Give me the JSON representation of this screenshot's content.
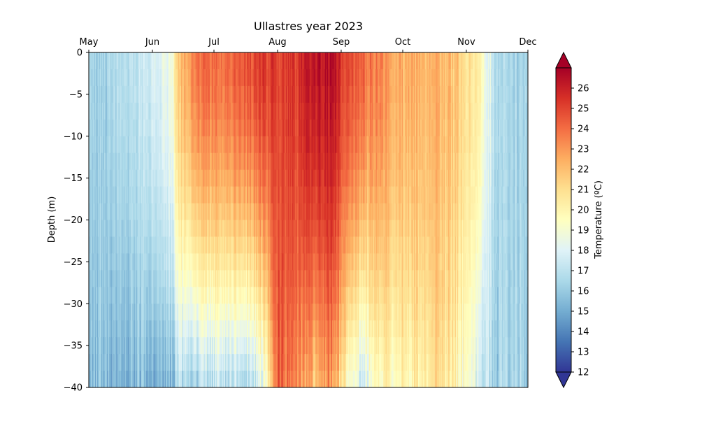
{
  "chart_data": {
    "type": "heatmap",
    "title": "Ullastres year 2023",
    "xlabel": "",
    "ylabel": "Depth (m)",
    "x_axis_position": "top",
    "x_ticks": [
      "May",
      "Jun",
      "Jul",
      "Aug",
      "Sep",
      "Oct",
      "Nov",
      "Dec"
    ],
    "x_range": [
      "2023-05-01",
      "2023-12-01"
    ],
    "y_ticks": [
      0,
      -5,
      -10,
      -15,
      -20,
      -25,
      -30,
      -35,
      -40
    ],
    "ylim": [
      -40,
      0
    ],
    "colorbar": {
      "label": "Temperature (ºC)",
      "ticks": [
        12,
        13,
        14,
        15,
        16,
        17,
        18,
        19,
        20,
        21,
        22,
        23,
        24,
        25,
        26
      ],
      "range": [
        12,
        27
      ],
      "colormap": "RdYlBu_r",
      "extend": "both"
    },
    "grid": false,
    "temperature_profile": {
      "dates": [
        "2023-05-01",
        "2023-05-15",
        "2023-06-01",
        "2023-06-10",
        "2023-06-14",
        "2023-06-20",
        "2023-07-01",
        "2023-07-15",
        "2023-07-25",
        "2023-08-01",
        "2023-08-10",
        "2023-08-20",
        "2023-08-27",
        "2023-09-01",
        "2023-09-10",
        "2023-09-20",
        "2023-10-01",
        "2023-10-15",
        "2023-10-25",
        "2023-11-01",
        "2023-11-08",
        "2023-11-15",
        "2023-12-01"
      ],
      "surface": [
        16.3,
        16.5,
        17.5,
        19.0,
        22.0,
        23.5,
        24.0,
        24.5,
        25.3,
        25.0,
        25.3,
        26.3,
        26.6,
        25.5,
        24.2,
        23.3,
        22.5,
        22.2,
        22.0,
        21.0,
        20.0,
        16.5,
        16.3
      ],
      "bottom": [
        15.6,
        15.4,
        15.4,
        15.3,
        16.5,
        16.2,
        16.8,
        16.5,
        18.0,
        24.5,
        23.0,
        21.5,
        23.5,
        20.5,
        17.5,
        19.5,
        19.8,
        21.0,
        20.0,
        19.0,
        17.5,
        16.2,
        16.3
      ]
    }
  }
}
